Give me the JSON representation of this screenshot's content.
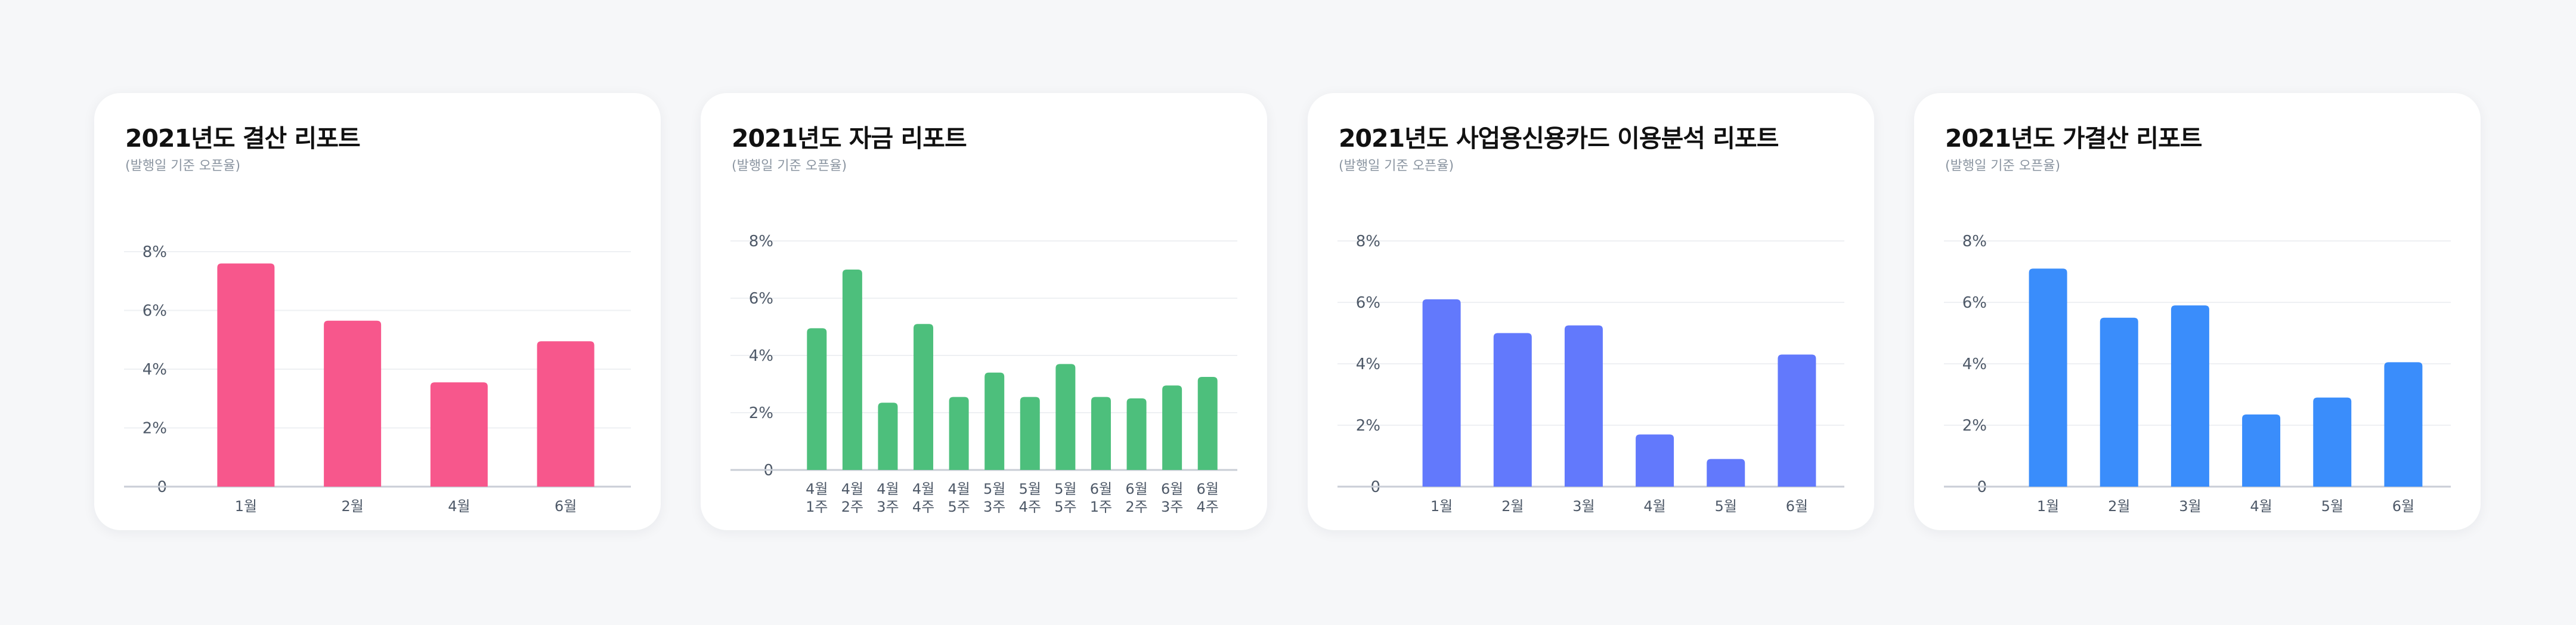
{
  "cards": [
    {
      "title": "2021년도 결산 리포트",
      "subtitle": "(발행일 기준 오픈율)",
      "chart_data": {
        "type": "bar",
        "color": "#f7578c",
        "categories": [
          "1월",
          "2월",
          "4월",
          "6월"
        ],
        "values": [
          7.6,
          5.65,
          3.55,
          4.95
        ],
        "ylim": [
          0,
          8
        ],
        "yticks": [
          0,
          2,
          4,
          6,
          8
        ],
        "ytick_labels": [
          "0",
          "2%",
          "4%",
          "6%",
          "8%"
        ],
        "grid": true
      }
    },
    {
      "title": "2021년도 자금 리포트",
      "subtitle": "(발행일 기준 오픈율)",
      "chart_data": {
        "type": "bar",
        "color": "#4dbf7c",
        "categories": [
          [
            "4월",
            "1주"
          ],
          [
            "4월",
            "2주"
          ],
          [
            "4월",
            "3주"
          ],
          [
            "4월",
            "4주"
          ],
          [
            "4월",
            "5주"
          ],
          [
            "5월",
            "3주"
          ],
          [
            "5월",
            "4주"
          ],
          [
            "5월",
            "5주"
          ],
          [
            "6월",
            "1주"
          ],
          [
            "6월",
            "2주"
          ],
          [
            "6월",
            "3주"
          ],
          [
            "6월",
            "4주"
          ]
        ],
        "values": [
          4.95,
          7.0,
          2.35,
          5.1,
          2.55,
          3.4,
          2.55,
          3.7,
          2.55,
          2.5,
          2.95,
          3.25
        ],
        "ylim": [
          0,
          8
        ],
        "yticks": [
          0,
          2,
          4,
          6,
          8
        ],
        "ytick_labels": [
          "0",
          "2%",
          "4%",
          "6%",
          "8%"
        ],
        "grid": true
      }
    },
    {
      "title": "2021년도 사업용신용카드 이용분석 리포트",
      "subtitle": "(발행일 기준 오픈율)",
      "chart_data": {
        "type": "bar",
        "color": "#6279fc",
        "categories": [
          "1월",
          "2월",
          "3월",
          "4월",
          "5월",
          "6월"
        ],
        "values": [
          6.1,
          5.0,
          5.25,
          1.7,
          0.9,
          4.3
        ],
        "ylim": [
          0,
          8
        ],
        "yticks": [
          0,
          2,
          4,
          6,
          8
        ],
        "ytick_labels": [
          "0",
          "2%",
          "4%",
          "6%",
          "8%"
        ],
        "grid": true
      }
    },
    {
      "title": "2021년도 가결산 리포트",
      "subtitle": "(발행일 기준 오픈율)",
      "chart_data": {
        "type": "bar",
        "color": "#3a8dfb",
        "categories": [
          "1월",
          "2월",
          "3월",
          "4월",
          "5월",
          "6월"
        ],
        "values": [
          7.1,
          5.5,
          5.9,
          2.35,
          2.9,
          4.05
        ],
        "ylim": [
          0,
          8
        ],
        "yticks": [
          0,
          2,
          4,
          6,
          8
        ],
        "ytick_labels": [
          "0",
          "2%",
          "4%",
          "6%",
          "8%"
        ],
        "grid": true
      }
    }
  ]
}
